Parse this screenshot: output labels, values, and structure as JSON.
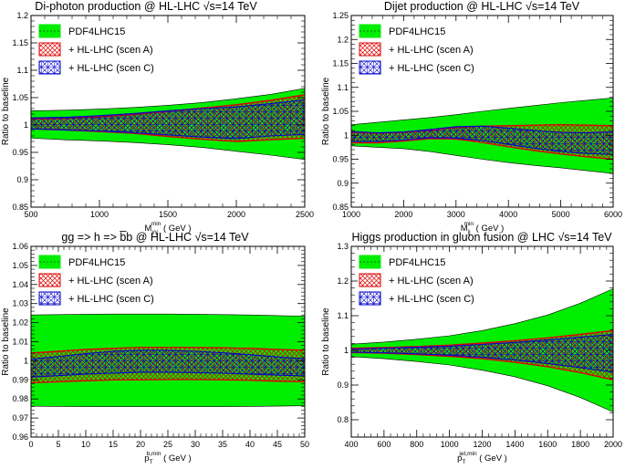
{
  "colors": {
    "pdf": "#00ee00",
    "scenA": "#dd0000",
    "scenC": "#0000cc",
    "axis": "#000000"
  },
  "legend_labels": [
    "PDF4LHC15",
    "+ HL-LHC (scen A)",
    "+ HL-LHC (scen C)"
  ],
  "chart_data": [
    {
      "type": "area",
      "title": "Di-photon production @ HL-LHC √s=14 TeV",
      "ylabel": "Ratio to baseline",
      "xlabel_main": "M",
      "xlabel_sub": "γγ",
      "xlabel_sup": "min",
      "xlabel_unit": " ( GeV )",
      "xlim": [
        500,
        2500
      ],
      "ylim": [
        0.85,
        1.2
      ],
      "xticks": [
        500,
        1000,
        1500,
        2000,
        2500
      ],
      "yticks": [
        0.85,
        0.9,
        0.95,
        1,
        1.05,
        1.1,
        1.15,
        1.2
      ],
      "xtick_labels": [
        "500",
        "1000",
        "1500",
        "2000",
        "2500"
      ],
      "ytick_labels": [
        "0.85",
        "0.9",
        "0.95",
        "1",
        "1.05",
        "1.1",
        "1.15",
        "1.2"
      ],
      "x": [
        500,
        750,
        1000,
        1250,
        1500,
        1750,
        2000,
        2250,
        2500
      ],
      "series": [
        {
          "name": "PDF4LHC15",
          "upper": [
            1.026,
            1.027,
            1.029,
            1.032,
            1.036,
            1.041,
            1.048,
            1.056,
            1.067
          ],
          "lower": [
            0.976,
            0.973,
            0.971,
            0.968,
            0.964,
            0.959,
            0.952,
            0.945,
            0.937
          ]
        },
        {
          "name": "+ HL-LHC (scen A)",
          "upper": [
            1.011,
            1.012,
            1.015,
            1.019,
            1.025,
            1.031,
            1.037,
            1.045,
            1.055
          ],
          "lower": [
            0.993,
            0.991,
            0.988,
            0.985,
            0.979,
            0.974,
            0.97,
            0.973,
            0.976
          ]
        },
        {
          "name": "+ HL-LHC (scen C)",
          "upper": [
            1.013,
            1.014,
            1.017,
            1.021,
            1.026,
            1.03,
            1.033,
            1.039,
            1.046
          ],
          "lower": [
            0.993,
            0.991,
            0.989,
            0.986,
            0.982,
            0.978,
            0.975,
            0.98,
            0.983
          ]
        }
      ]
    },
    {
      "type": "area",
      "title": "Dijet production @ HL-LHC √s=14 TeV",
      "ylabel": "Ratio to baseline",
      "xlabel_main": "M",
      "xlabel_sub": "jj",
      "xlabel_sup": "min",
      "xlabel_unit": " ( GeV )",
      "xlim": [
        1000,
        6000
      ],
      "ylim": [
        0.85,
        1.25
      ],
      "xticks": [
        1000,
        2000,
        3000,
        4000,
        5000,
        6000
      ],
      "yticks": [
        0.85,
        0.9,
        0.95,
        1,
        1.05,
        1.1,
        1.15,
        1.2,
        1.25
      ],
      "xtick_labels": [
        "1000",
        "2000",
        "3000",
        "4000",
        "5000",
        "6000"
      ],
      "ytick_labels": [
        "0.85",
        "0.9",
        "0.95",
        "1",
        "1.05",
        "1.1",
        "1.15",
        "1.2",
        "1.25"
      ],
      "x": [
        1000,
        1500,
        2000,
        2500,
        3000,
        3500,
        4000,
        4500,
        5000,
        5500,
        6000
      ],
      "series": [
        {
          "name": "PDF4LHC15",
          "upper": [
            1.022,
            1.027,
            1.032,
            1.037,
            1.043,
            1.05,
            1.056,
            1.062,
            1.068,
            1.073,
            1.078
          ],
          "lower": [
            0.978,
            0.975,
            0.972,
            0.966,
            0.958,
            0.95,
            0.943,
            0.937,
            0.932,
            0.926,
            0.92
          ]
        },
        {
          "name": "+ HL-LHC (scen A)",
          "upper": [
            1.006,
            1.004,
            1.006,
            1.01,
            1.016,
            1.019,
            1.02,
            1.021,
            1.022,
            1.021,
            1.02
          ],
          "lower": [
            0.984,
            0.984,
            0.988,
            0.993,
            0.992,
            0.985,
            0.976,
            0.968,
            0.961,
            0.955,
            0.95
          ]
        },
        {
          "name": "+ HL-LHC (scen C)",
          "upper": [
            1.008,
            1.005,
            1.007,
            1.012,
            1.018,
            1.019,
            1.015,
            1.01,
            1.006,
            1.005,
            1.007
          ],
          "lower": [
            0.987,
            0.987,
            0.99,
            0.995,
            0.994,
            0.989,
            0.981,
            0.973,
            0.966,
            0.962,
            0.96
          ]
        }
      ]
    },
    {
      "type": "area",
      "title": "gg => h => b̅b @ HL-LHC √s=14 TeV",
      "ylabel": "Ratio to baseline",
      "xlabel_main": "p",
      "xlabel_sub": "T",
      "xlabel_sup": "b,min",
      "xlabel_unit": " ( GeV )",
      "xlim": [
        0,
        50
      ],
      "ylim": [
        0.96,
        1.06
      ],
      "xticks": [
        0,
        5,
        10,
        15,
        20,
        25,
        30,
        35,
        40,
        45,
        50
      ],
      "yticks": [
        0.96,
        0.97,
        0.98,
        0.99,
        1,
        1.01,
        1.02,
        1.03,
        1.04,
        1.05,
        1.06
      ],
      "xtick_labels": [
        "0",
        "5",
        "10",
        "15",
        "20",
        "25",
        "30",
        "35",
        "40",
        "45",
        "50"
      ],
      "ytick_labels": [
        "0.96",
        "0.97",
        "0.98",
        "0.99",
        "1",
        "1.01",
        "1.02",
        "1.03",
        "1.04",
        "1.05",
        "1.06"
      ],
      "x": [
        0,
        5,
        10,
        15,
        20,
        25,
        30,
        35,
        40,
        45,
        50
      ],
      "series": [
        {
          "name": "PDF4LHC15",
          "upper": [
            1.024,
            1.0242,
            1.0244,
            1.0245,
            1.0245,
            1.0245,
            1.0244,
            1.0242,
            1.024,
            1.0237,
            1.0234
          ],
          "lower": [
            0.9762,
            0.9761,
            0.976,
            0.976,
            0.976,
            0.976,
            0.976,
            0.976,
            0.9761,
            0.9762,
            0.9764
          ]
        },
        {
          "name": "+ HL-LHC (scen A)",
          "upper": [
            1.004,
            1.005,
            1.006,
            1.0065,
            1.007,
            1.007,
            1.007,
            1.0068,
            1.0065,
            1.006,
            1.0055
          ],
          "lower": [
            0.9885,
            0.989,
            0.9895,
            0.99,
            0.99,
            0.9902,
            0.9902,
            0.99,
            0.9898,
            0.9893,
            0.989
          ]
        },
        {
          "name": "+ HL-LHC (scen C)",
          "upper": [
            1.0008,
            1.0022,
            1.0038,
            1.005,
            1.0055,
            1.0055,
            1.005,
            1.0042,
            1.0032,
            1.002,
            1.001
          ],
          "lower": [
            0.9915,
            0.9922,
            0.993,
            0.9935,
            0.994,
            0.994,
            0.9938,
            0.9935,
            0.993,
            0.9925,
            0.992
          ]
        }
      ]
    },
    {
      "type": "area",
      "title": "Higgs production in gluon fusion @ LHC √s=14 TeV",
      "ylabel": "Ratio to baseline",
      "xlabel_main": "p",
      "xlabel_sub": "T",
      "xlabel_sup": "jet,min",
      "xlabel_unit": " ( GeV )",
      "xlim": [
        400,
        2000
      ],
      "ylim": [
        0.75,
        1.3
      ],
      "xticks": [
        400,
        600,
        800,
        1000,
        1200,
        1400,
        1600,
        1800,
        2000
      ],
      "yticks": [
        0.8,
        0.9,
        1,
        1.1,
        1.2,
        1.3
      ],
      "xtick_labels": [
        "400",
        "600",
        "800",
        "1000",
        "1200",
        "1400",
        "1600",
        "1800",
        "2000"
      ],
      "ytick_labels": [
        "0.8",
        "0.9",
        "1",
        "1.1",
        "1.2",
        "1.3"
      ],
      "x": [
        400,
        600,
        800,
        1000,
        1200,
        1400,
        1600,
        1800,
        2000
      ],
      "series": [
        {
          "name": "PDF4LHC15",
          "upper": [
            1.018,
            1.024,
            1.032,
            1.042,
            1.057,
            1.077,
            1.102,
            1.136,
            1.178
          ],
          "lower": [
            0.982,
            0.976,
            0.968,
            0.958,
            0.943,
            0.924,
            0.898,
            0.864,
            0.822
          ]
        },
        {
          "name": "+ HL-LHC (scen A)",
          "upper": [
            1.006,
            1.008,
            1.011,
            1.015,
            1.021,
            1.028,
            1.036,
            1.046,
            1.057
          ],
          "lower": [
            0.994,
            0.992,
            0.988,
            0.983,
            0.976,
            0.966,
            0.953,
            0.936,
            0.915
          ]
        },
        {
          "name": "+ HL-LHC (scen C)",
          "upper": [
            1.004,
            1.006,
            1.009,
            1.012,
            1.017,
            1.023,
            1.03,
            1.038,
            1.046
          ],
          "lower": [
            0.995,
            0.993,
            0.99,
            0.986,
            0.98,
            0.972,
            0.962,
            0.95,
            0.937
          ]
        }
      ]
    }
  ]
}
